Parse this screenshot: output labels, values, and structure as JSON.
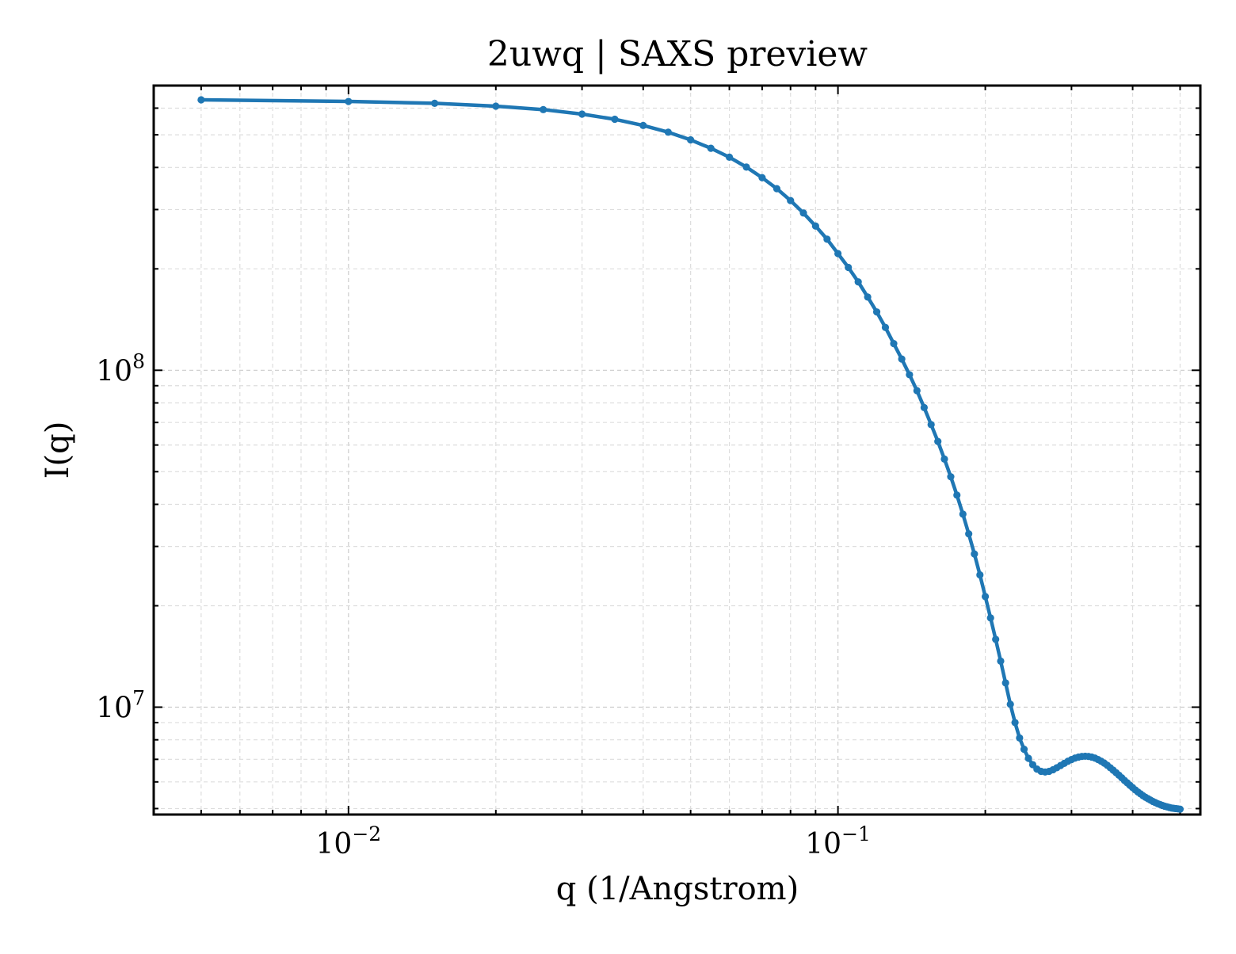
{
  "chart_data": {
    "type": "line",
    "title": "2uwq | SAXS preview",
    "xlabel": "q (1/Angstrom)",
    "ylabel": "I(q)",
    "xscale": "log",
    "yscale": "log",
    "xlim": [
      0.004,
      0.55
    ],
    "ylim": [
      4800000,
      700000000
    ],
    "grid": true,
    "line_color": "#1f77b4",
    "x_tick_labels": [
      {
        "base": "10",
        "exp": "−2",
        "value": 0.01
      },
      {
        "base": "10",
        "exp": "−1",
        "value": 0.1
      }
    ],
    "y_tick_labels": [
      {
        "base": "10",
        "exp": "7",
        "value": 10000000
      },
      {
        "base": "10",
        "exp": "8",
        "value": 100000000
      }
    ],
    "series": [
      {
        "x": [
          0.005,
          0.01,
          0.015,
          0.02,
          0.025,
          0.03,
          0.035,
          0.04,
          0.045,
          0.05,
          0.055,
          0.06,
          0.065,
          0.07,
          0.075,
          0.08,
          0.085,
          0.09,
          0.095,
          0.1,
          0.105,
          0.11,
          0.115,
          0.12,
          0.125,
          0.13,
          0.135,
          0.14,
          0.145,
          0.15,
          0.155,
          0.16,
          0.165,
          0.17,
          0.175,
          0.18,
          0.185,
          0.19,
          0.195,
          0.2,
          0.205,
          0.21,
          0.215,
          0.22,
          0.225,
          0.23,
          0.235,
          0.24,
          0.245,
          0.25,
          0.255,
          0.26,
          0.265,
          0.27,
          0.275,
          0.28,
          0.285,
          0.29,
          0.295,
          0.3,
          0.305,
          0.31,
          0.315,
          0.32,
          0.325,
          0.33,
          0.335,
          0.34,
          0.345,
          0.35,
          0.355,
          0.36,
          0.365,
          0.37,
          0.375,
          0.38,
          0.385,
          0.39,
          0.395,
          0.4,
          0.405,
          0.41,
          0.415,
          0.42,
          0.425,
          0.43,
          0.435,
          0.44,
          0.445,
          0.45,
          0.455,
          0.46,
          0.465,
          0.47,
          0.475,
          0.48,
          0.485,
          0.49,
          0.495,
          0.5
        ],
        "y": [
          635000000,
          628000000,
          620000000,
          608000000,
          594000000,
          576000000,
          556000000,
          533000000,
          509000000,
          483000000,
          456000000,
          429000000,
          401000000,
          373000000,
          346000000,
          319000000,
          293000000,
          268000000,
          245000000,
          222000000,
          202000000,
          183000000,
          165000000,
          149000000,
          134000000,
          120000000,
          108000000,
          97000000,
          87000000,
          77500000,
          69000000,
          61500000,
          54500000,
          48300000,
          42600000,
          37400000,
          32700000,
          28500000,
          24700000,
          21300000,
          18400000,
          15900000,
          13700000,
          11800000,
          10200000,
          9000000,
          8100000,
          7500000,
          7050000,
          6750000,
          6550000,
          6450000,
          6420000,
          6450000,
          6520000,
          6610000,
          6710000,
          6810000,
          6910000,
          6990000,
          7060000,
          7110000,
          7140000,
          7150000,
          7140000,
          7110000,
          7060000,
          6990000,
          6910000,
          6820000,
          6720000,
          6610000,
          6500000,
          6390000,
          6280000,
          6170000,
          6060000,
          5960000,
          5860000,
          5770000,
          5680000,
          5600000,
          5530000,
          5460000,
          5400000,
          5350000,
          5300000,
          5250000,
          5210000,
          5170000,
          5140000,
          5110000,
          5080000,
          5060000,
          5040000,
          5020000,
          5010000,
          5000000,
          4990000,
          4980000
        ]
      }
    ]
  }
}
